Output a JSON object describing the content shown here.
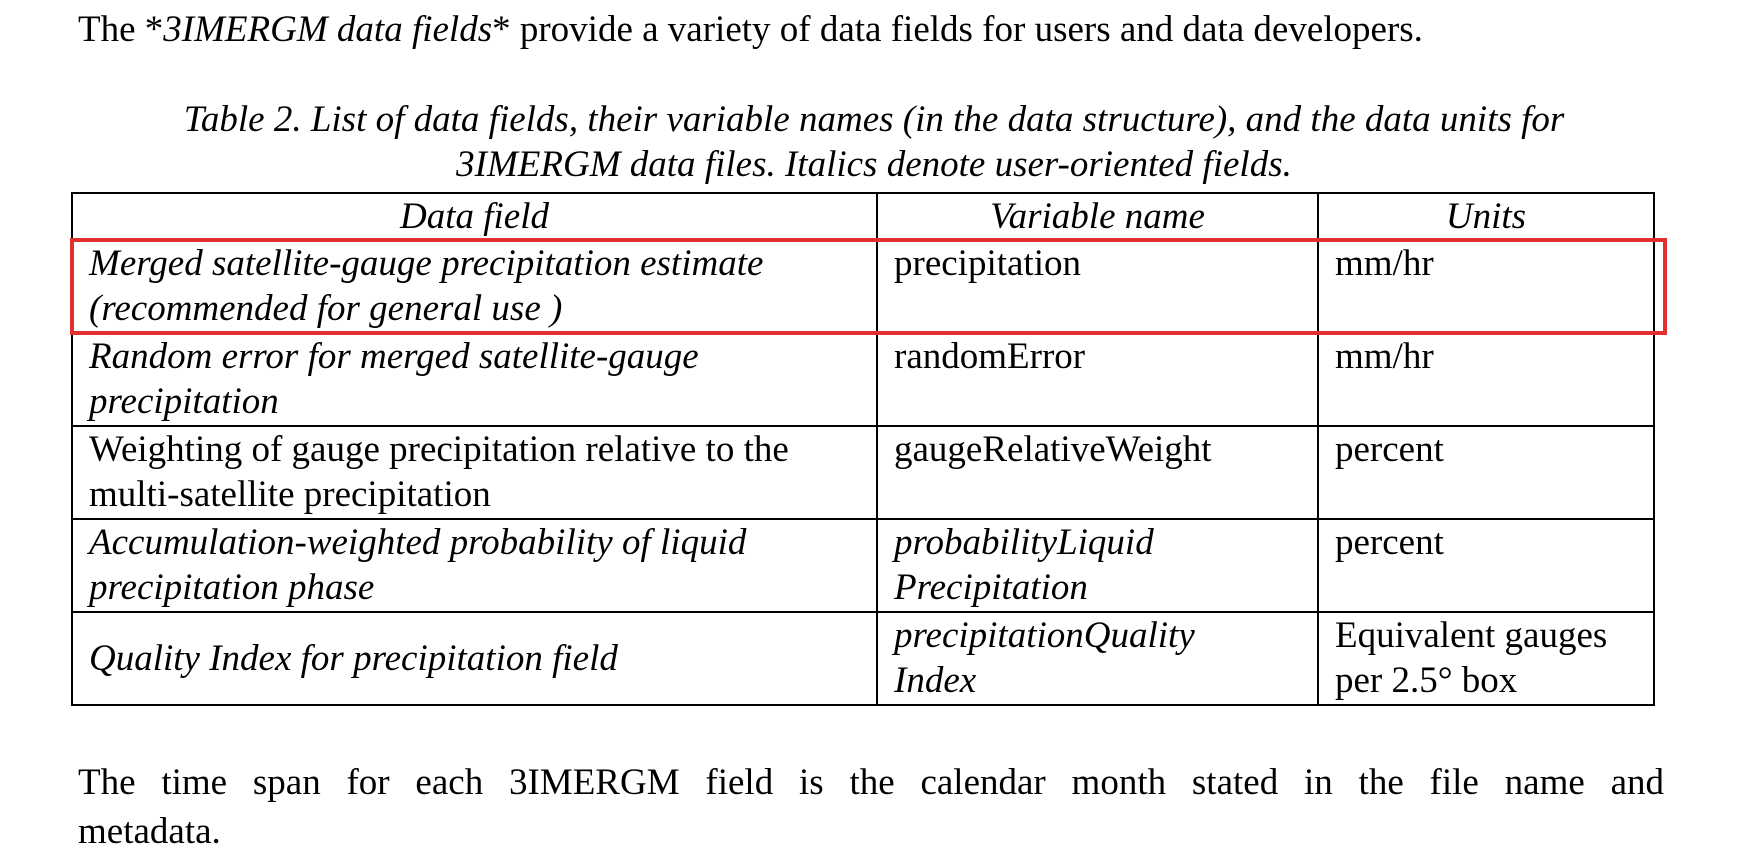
{
  "intro": {
    "prefix": "The *",
    "emphasis": "3IMERGM data fields",
    "suffix": "* provide a variety of data fields for users and data developers."
  },
  "caption": {
    "line1": "Table 2.  List of data fields, their variable names (in the data structure), and the data units for",
    "line2": "3IMERGM data files.  Italics denote user-oriented fields."
  },
  "table": {
    "headers": [
      "Data field",
      "Variable name",
      "Units"
    ],
    "rows": [
      {
        "field_line1": "Merged satellite-gauge precipitation estimate",
        "field_line2": "(recommended for general use )",
        "variable": "precipitation",
        "units": "mm/hr"
      },
      {
        "field_line1": "Random error for merged satellite-gauge",
        "field_line2": "precipitation",
        "variable": "randomError",
        "units": "mm/hr"
      },
      {
        "field_line1": "Weighting of gauge precipitation relative to the",
        "field_line2": "multi-satellite precipitation",
        "variable": "gaugeRelativeWeight",
        "units": "percent"
      },
      {
        "field_line1": "Accumulation-weighted probability of liquid",
        "field_line2": "precipitation phase",
        "variable_line1": "probabilityLiquid",
        "variable_line2": "Precipitation",
        "units": "percent"
      },
      {
        "field": "Quality Index for precipitation field",
        "variable_line1": "precipitationQuality",
        "variable_line2": "Index",
        "units_line1": "Equivalent gauges",
        "units_line2": "per 2.5° box"
      }
    ]
  },
  "highlight_color": "#e0312f",
  "closing": {
    "line1": "The time span for each 3IMERGM field is the calendar month stated in the file name and",
    "line2": "metadata."
  }
}
